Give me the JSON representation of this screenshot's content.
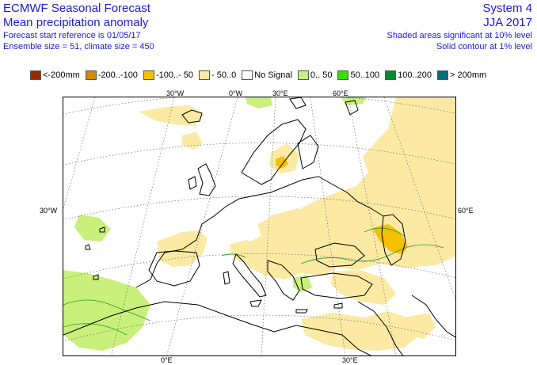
{
  "header": {
    "title_line1": "ECMWF Seasonal Forecast",
    "title_line2": "Mean precipitation anomaly",
    "start_ref": "Forecast start reference is 01/05/17",
    "ensemble": "Ensemble size = 51, climate size = 450",
    "system": "System 4",
    "season": "JJA 2017",
    "shaded_note": "Shaded areas significant at 10% level",
    "contour_note": "Solid contour at 1% level"
  },
  "legend": [
    {
      "label": "<-200mm",
      "color": "#9a2a00"
    },
    {
      "label": "-200..-100",
      "color": "#d48a00"
    },
    {
      "label": "-100..- 50",
      "color": "#f5c000"
    },
    {
      "label": "- 50..0",
      "color": "#fbe9a4"
    },
    {
      "label": "No Signal",
      "color": "#ffffff"
    },
    {
      "label": "0.. 50",
      "color": "#c8f07a"
    },
    {
      "label": "50..100",
      "color": "#38e000"
    },
    {
      "label": "100..200",
      "color": "#008c32"
    },
    {
      "label": "> 200mm",
      "color": "#006e78"
    }
  ],
  "axes": {
    "top": [
      "30°W",
      "0°W",
      "30°E",
      "60°E"
    ],
    "left": "30°W",
    "right": "60°E",
    "bottom": [
      "0°E",
      "30°E"
    ]
  }
}
